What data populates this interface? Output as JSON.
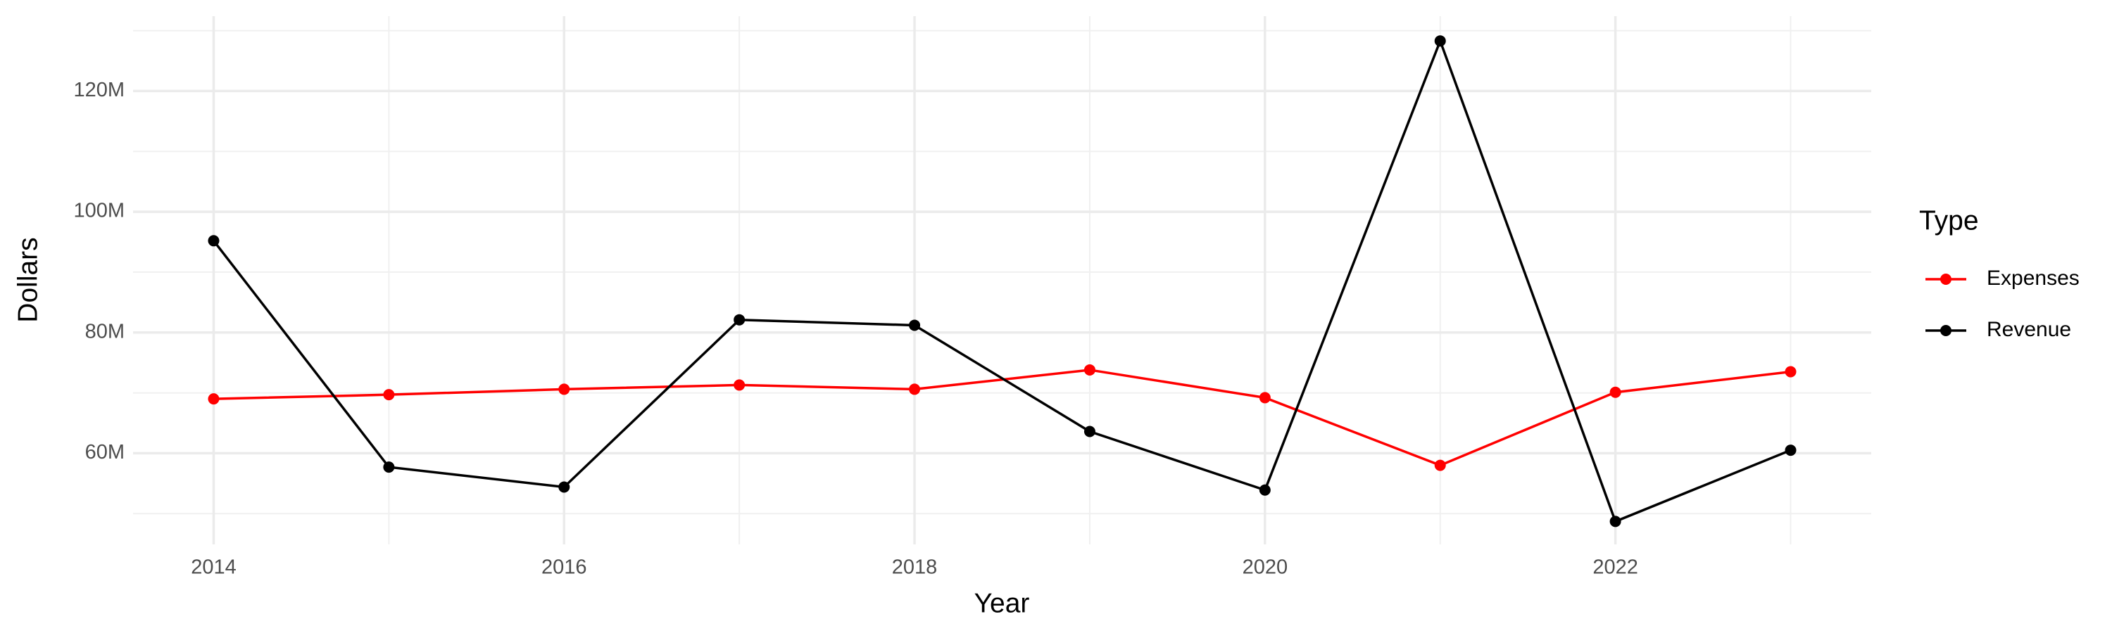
{
  "chart_data": {
    "type": "line",
    "x_label": "Year",
    "y_label": "Dollars",
    "legend_title": "Type",
    "legend_position": "right",
    "x": [
      2014,
      2015,
      2016,
      2017,
      2018,
      2019,
      2020,
      2021,
      2022,
      2023
    ],
    "series": [
      {
        "name": "Expenses",
        "color": "#ff0000",
        "values": [
          69000000,
          69700000,
          70600000,
          71300000,
          70600000,
          73800000,
          69200000,
          58000000,
          70100000,
          73500000
        ]
      },
      {
        "name": "Revenue",
        "color": "#000000",
        "values": [
          95200000,
          57700000,
          54400000,
          82100000,
          81200000,
          63600000,
          53900000,
          128300000,
          48700000,
          60500000
        ]
      }
    ],
    "xlim": [
      2013.54,
      2023.46
    ],
    "xticks": [
      2014,
      2016,
      2018,
      2020,
      2022
    ],
    "ylim": [
      44900000,
      132400000
    ],
    "yticks": [
      {
        "value": 60000000,
        "label": "60M"
      },
      {
        "value": 80000000,
        "label": "80M"
      },
      {
        "value": 100000000,
        "label": "100M"
      },
      {
        "value": 120000000,
        "label": "120M"
      }
    ],
    "grid": true
  }
}
